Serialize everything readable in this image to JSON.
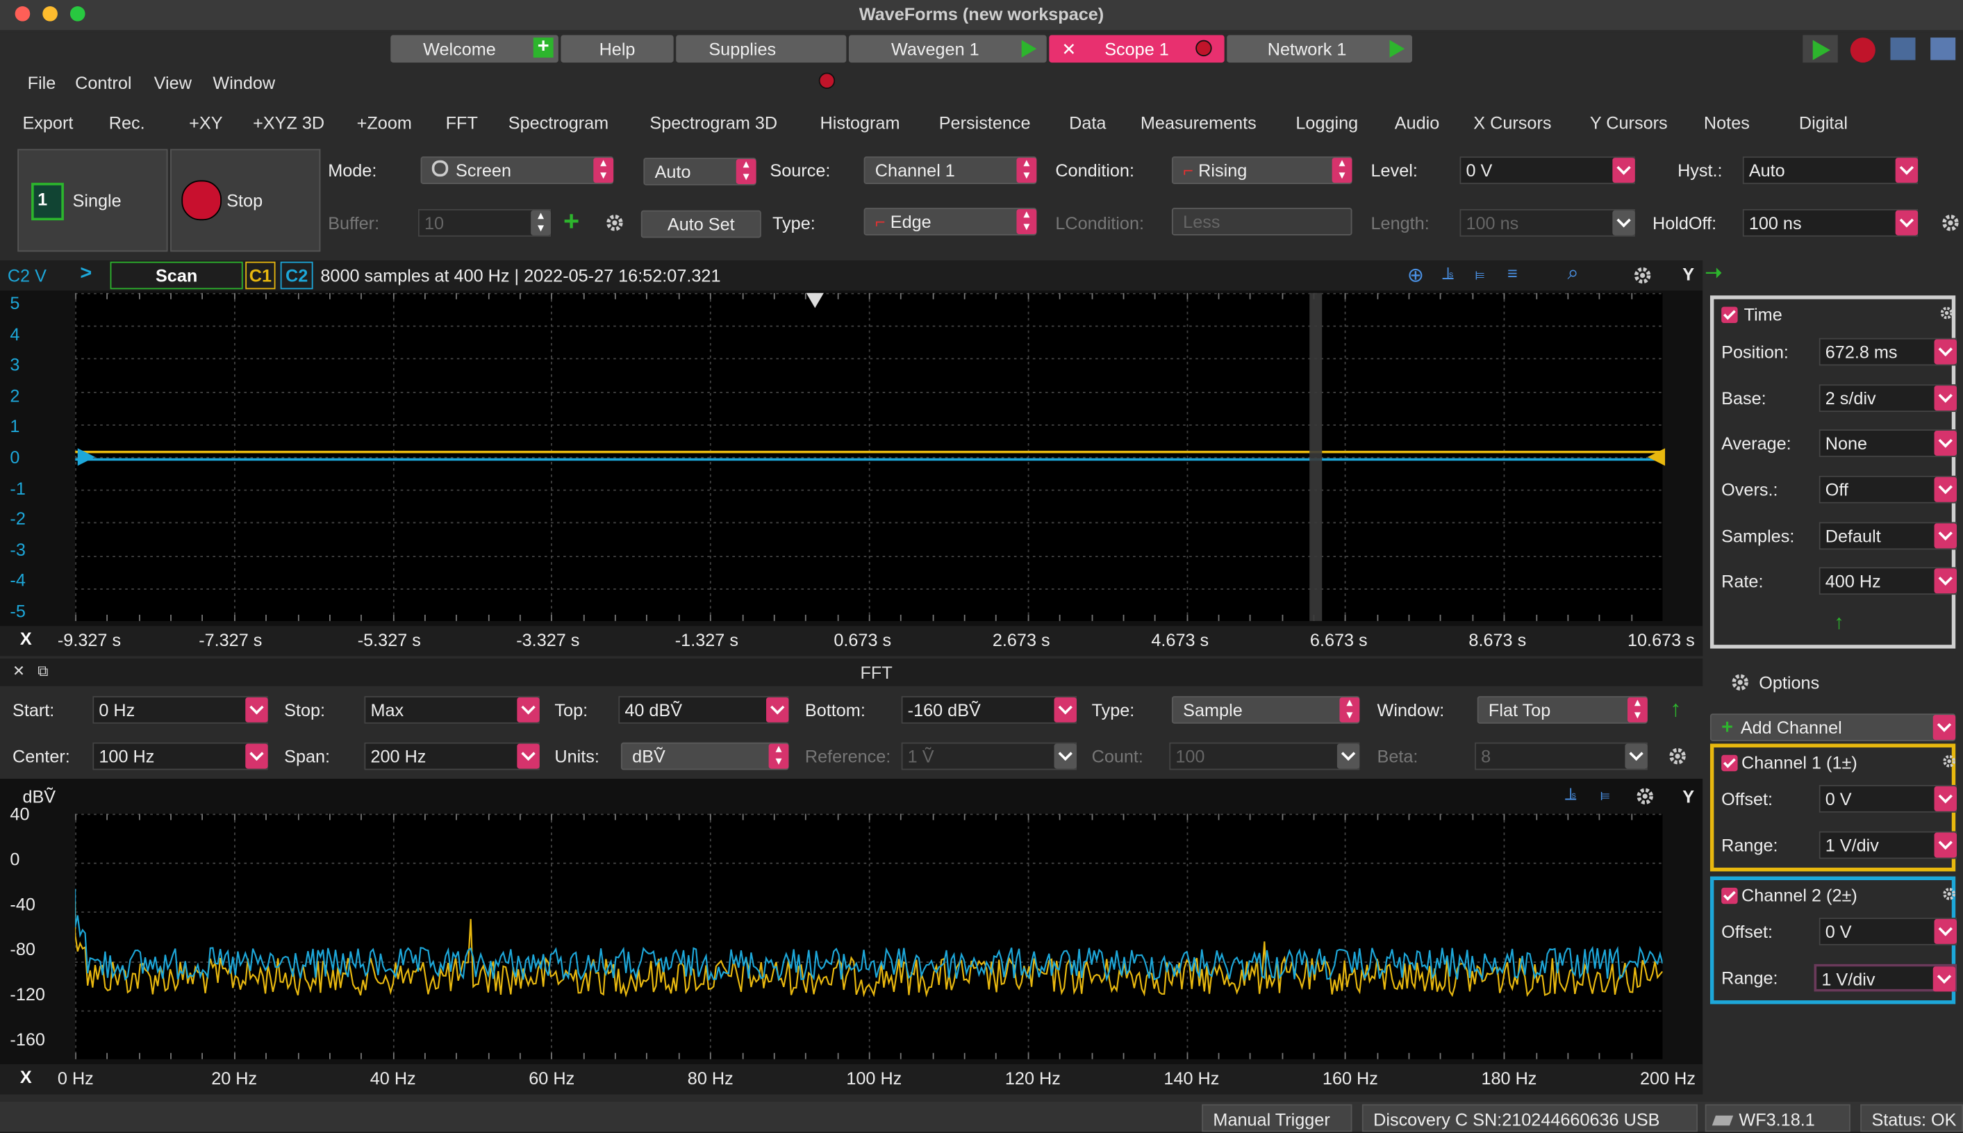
{
  "window": {
    "title": "WaveForms (new workspace)"
  },
  "tabs": [
    {
      "label": "Welcome"
    },
    {
      "label": "Help"
    },
    {
      "label": "Supplies"
    },
    {
      "label": "Wavegen 1"
    },
    {
      "label": "Scope 1"
    },
    {
      "label": "Network 1"
    }
  ],
  "menu": [
    "File",
    "Control",
    "View",
    "Window"
  ],
  "toolbar": [
    "Export",
    "Rec.",
    "+XY",
    "+XYZ 3D",
    "+Zoom",
    "FFT",
    "Spectrogram",
    "Spectrogram 3D",
    "Histogram",
    "Persistence",
    "Data",
    "Measurements",
    "Logging",
    "Audio",
    "X Cursors",
    "Y Cursors",
    "Notes",
    "Digital"
  ],
  "acq": {
    "single_label": "Single",
    "stop_label": "Stop",
    "mode_label": "Mode:",
    "mode_value": "Screen",
    "auto_value": "Auto",
    "source_label": "Source:",
    "source_value": "Channel 1",
    "condition_label": "Condition:",
    "condition_value": "Rising",
    "level_label": "Level:",
    "level_value": "0 V",
    "hyst_label": "Hyst.:",
    "hyst_value": "Auto",
    "buffer_label": "Buffer:",
    "buffer_value": "10",
    "autoset_label": "Auto Set",
    "type_label": "Type:",
    "type_value": "Edge",
    "lcondition_label": "LCondition:",
    "lcondition_value": "Less",
    "length_label": "Length:",
    "length_value": "100 ns",
    "holdoff_label": "HoldOff:",
    "holdoff_value": "100 ns"
  },
  "scope": {
    "y_channel": "C2 V",
    "scan_label": "Scan",
    "c1": "C1",
    "c2": "C2",
    "info": "8000 samples at 400 Hz | 2022-05-27 16:52:07.321",
    "y_button": "Y",
    "y_ticks": [
      "5",
      "4",
      "3",
      "2",
      "1",
      "0",
      "-1",
      "-2",
      "-3",
      "-4",
      "-5"
    ],
    "x_label": "X",
    "x_ticks": [
      "-9.327 s",
      "-7.327 s",
      "-5.327 s",
      "-3.327 s",
      "-1.327 s",
      "0.673 s",
      "2.673 s",
      "4.673 s",
      "6.673 s",
      "8.673 s",
      "10.673 s"
    ],
    "ch1_color": "#e8b80f",
    "ch2_color": "#1da7d9"
  },
  "fft": {
    "title": "FFT",
    "start_label": "Start:",
    "start_value": "0 Hz",
    "stop_label": "Stop:",
    "stop_value": "Max",
    "top_label": "Top:",
    "top_value": "40 dBṼ",
    "bottom_label": "Bottom:",
    "bottom_value": "-160 dBṼ",
    "type_label": "Type:",
    "type_value": "Sample",
    "window_label": "Window:",
    "window_value": "Flat Top",
    "center_label": "Center:",
    "center_value": "100 Hz",
    "span_label": "Span:",
    "span_value": "200 Hz",
    "units_label": "Units:",
    "units_value": "dBṼ",
    "reference_label": "Reference:",
    "reference_value": "1 Ṽ",
    "count_label": "Count:",
    "count_value": "100",
    "beta_label": "Beta:",
    "beta_value": "8",
    "y_unit": "dBṼ",
    "y_button": "Y",
    "y_ticks": [
      "40",
      "0",
      "-40",
      "-80",
      "-120",
      "-160"
    ],
    "x_label": "X",
    "x_ticks": [
      "0 Hz",
      "20 Hz",
      "40 Hz",
      "60 Hz",
      "80 Hz",
      "100 Hz",
      "120 Hz",
      "140 Hz",
      "160 Hz",
      "180 Hz",
      "200 Hz"
    ]
  },
  "time": {
    "title": "Time",
    "position_label": "Position:",
    "position_value": "672.8 ms",
    "base_label": "Base:",
    "base_value": "2 s/div",
    "average_label": "Average:",
    "average_value": "None",
    "overs_label": "Overs.:",
    "overs_value": "Off",
    "samples_label": "Samples:",
    "samples_value": "Default",
    "rate_label": "Rate:",
    "rate_value": "400 Hz"
  },
  "options_label": "Options",
  "add_channel_label": "Add Channel",
  "channel1": {
    "title": "Channel 1 (1±)",
    "offset_label": "Offset:",
    "offset_value": "0 V",
    "range_label": "Range:",
    "range_value": "1 V/div"
  },
  "channel2": {
    "title": "Channel 2 (2±)",
    "offset_label": "Offset:",
    "offset_value": "0 V",
    "range_label": "Range:",
    "range_value": "1 V/div"
  },
  "status": {
    "trigger": "Manual Trigger",
    "device": "Discovery C SN:210244660636 USB",
    "version": "WF3.18.1",
    "state": "Status: OK"
  }
}
